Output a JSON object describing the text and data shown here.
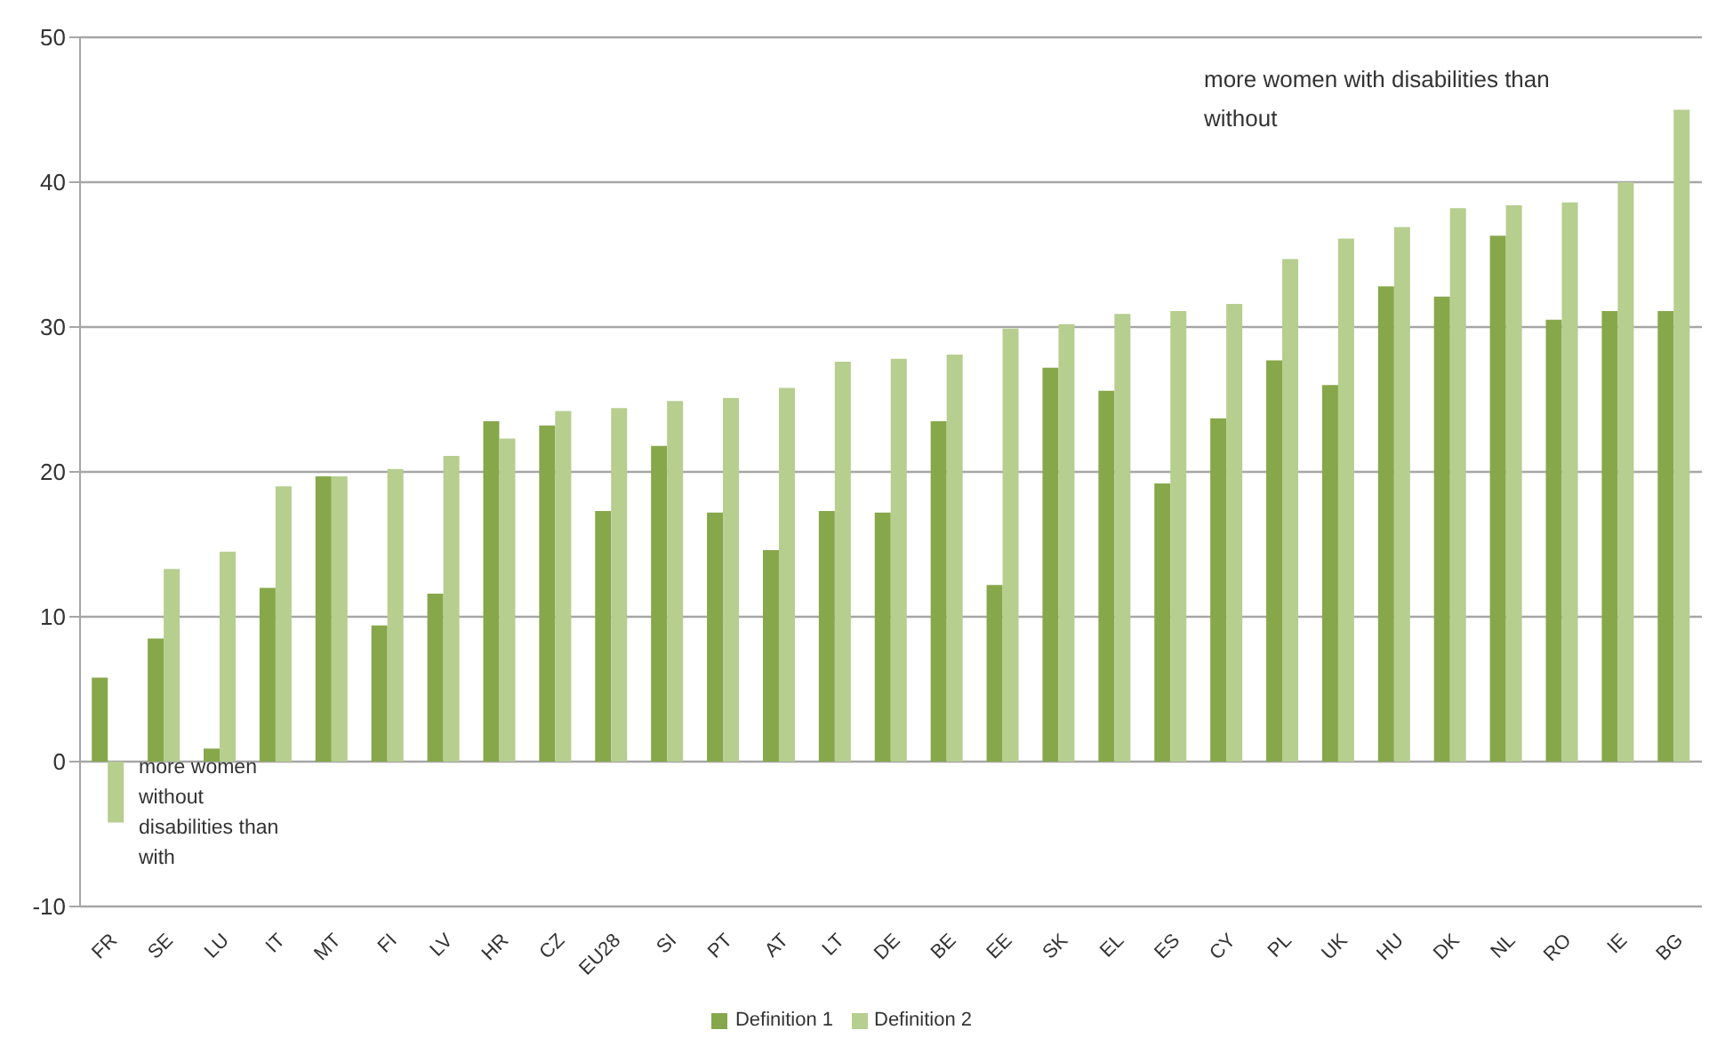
{
  "chart_data": {
    "type": "bar",
    "categories": [
      "FR",
      "SE",
      "LU",
      "IT",
      "MT",
      "FI",
      "LV",
      "HR",
      "CZ",
      "EU28",
      "SI",
      "PT",
      "AT",
      "LT",
      "DE",
      "BE",
      "EE",
      "SK",
      "EL",
      "ES",
      "CY",
      "PL",
      "UK",
      "HU",
      "DK",
      "NL",
      "RO",
      "IE",
      "BG"
    ],
    "series": [
      {
        "name": "Definition 1",
        "color": "#87a74b",
        "values": [
          5.8,
          8.5,
          0.9,
          12,
          19.7,
          9.4,
          11.6,
          23.5,
          23.2,
          17.3,
          21.8,
          17.2,
          14.6,
          17.3,
          17.2,
          23.5,
          12.2,
          27.2,
          25.6,
          19.2,
          23.7,
          27.7,
          26,
          32.8,
          32.1,
          36.3,
          30.5,
          31.1,
          31.1
        ]
      },
      {
        "name": "Definition 2",
        "color": "#b6ce8e",
        "values": [
          -4.2,
          13.3,
          14.5,
          19,
          19.7,
          20.2,
          21.1,
          22.3,
          24.2,
          24.4,
          24.9,
          25.1,
          25.8,
          27.6,
          27.8,
          28.1,
          29.9,
          30.2,
          30.9,
          31.1,
          31.6,
          34.7,
          36.1,
          36.9,
          38.2,
          38.4,
          38.6,
          40,
          45
        ]
      }
    ],
    "ylim": [
      -10,
      50
    ],
    "yticks": [
      -10,
      0,
      10,
      20,
      30,
      40,
      50
    ],
    "grid": "y",
    "legend": "bottom",
    "annotations": [
      "more women with disabilities than without",
      "more women without disabilities than with"
    ]
  }
}
